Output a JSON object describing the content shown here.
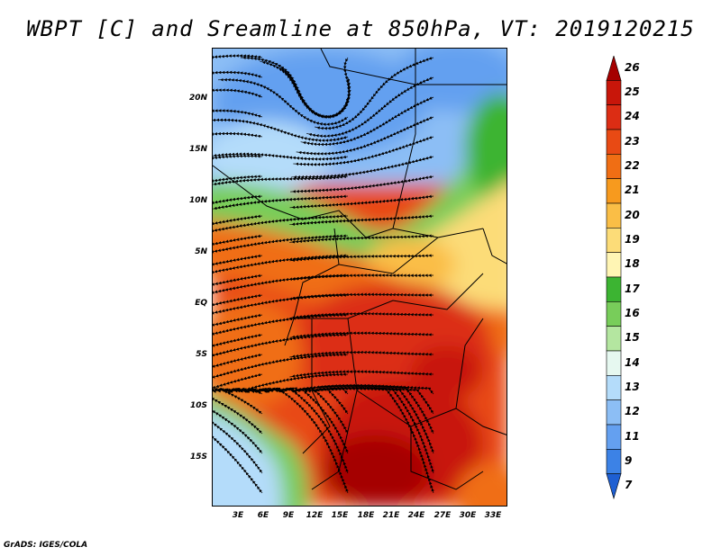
{
  "title": "WBPT [C] and Sreamline at 850hPa, VT: 2019120215",
  "credit": "GrADS: IGES/COLA",
  "map": {
    "variable": "wet-bulb potential temperature with 850hPa streamlines",
    "lat_labels": [
      "20N",
      "15N",
      "10N",
      "5N",
      "EQ",
      "5S",
      "10S",
      "15S"
    ],
    "lon_labels": [
      "3E",
      "6E",
      "9E",
      "12E",
      "15E",
      "18E",
      "21E",
      "24E",
      "27E",
      "30E",
      "33E"
    ]
  },
  "colorbar": {
    "levels": [
      "26",
      "25",
      "24",
      "23",
      "22",
      "21",
      "20",
      "19",
      "18",
      "17",
      "16",
      "15",
      "14",
      "13",
      "12",
      "11",
      "9",
      "7"
    ],
    "colors": [
      "#a50000",
      "#c8160a",
      "#dc2d14",
      "#e84a14",
      "#f06e14",
      "#f79a1e",
      "#fabe46",
      "#fcdc78",
      "#fff5b4",
      "#3cb432",
      "#78cd5a",
      "#b4e6a0",
      "#e6f8f0",
      "#b4dcfa",
      "#8cbef5",
      "#64a0f0",
      "#3c82e6",
      "#1e5fd2"
    ]
  }
}
